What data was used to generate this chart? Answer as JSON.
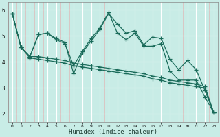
{
  "xlabel": "Humidex (Indice chaleur)",
  "ylabel": "",
  "xlim": [
    -0.5,
    23.5
  ],
  "ylim": [
    1.7,
    6.3
  ],
  "xticks": [
    0,
    1,
    2,
    3,
    4,
    5,
    6,
    7,
    8,
    9,
    10,
    11,
    12,
    13,
    14,
    15,
    16,
    17,
    18,
    19,
    20,
    21,
    22,
    23
  ],
  "yticks": [
    2,
    3,
    4,
    5,
    6
  ],
  "bg_color": "#c8ece6",
  "line_color": "#1a6b5a",
  "grid_major_color": "#ffffff",
  "grid_minor_color": "#e0b8b8",
  "line_width": 0.9,
  "marker": "+",
  "marker_size": 4,
  "marker_lw": 0.9,
  "lines": [
    {
      "x": [
        0,
        1,
        2,
        3,
        4,
        5,
        6,
        7,
        8,
        9,
        10,
        11,
        12,
        13,
        14,
        15,
        16,
        17,
        18,
        19,
        20,
        21,
        22,
        23
      ],
      "y": [
        5.85,
        4.55,
        4.2,
        5.05,
        5.1,
        4.9,
        4.75,
        3.55,
        4.35,
        4.8,
        5.25,
        5.85,
        5.45,
        5.1,
        5.2,
        4.65,
        4.95,
        4.9,
        4.1,
        3.7,
        4.05,
        3.7,
        2.9,
        2.05
      ]
    },
    {
      "x": [
        0,
        1,
        2,
        3,
        4,
        5,
        6,
        7,
        8,
        9,
        10,
        11,
        12,
        13,
        14,
        15,
        16,
        17,
        18,
        19,
        20,
        21,
        22,
        23
      ],
      "y": [
        5.85,
        4.55,
        4.2,
        5.05,
        5.1,
        4.85,
        4.7,
        3.85,
        4.4,
        4.9,
        5.3,
        5.9,
        5.1,
        4.85,
        5.1,
        4.6,
        4.6,
        4.7,
        3.65,
        3.3,
        3.3,
        3.3,
        2.65,
        2.05
      ]
    },
    {
      "x": [
        0,
        1,
        2,
        3,
        4,
        5,
        6,
        7,
        8,
        9,
        10,
        11,
        12,
        13,
        14,
        15,
        16,
        17,
        18,
        19,
        20,
        21,
        22,
        23
      ],
      "y": [
        5.85,
        4.55,
        4.15,
        4.1,
        4.05,
        4.0,
        3.95,
        3.85,
        3.8,
        3.75,
        3.7,
        3.65,
        3.6,
        3.55,
        3.5,
        3.45,
        3.35,
        3.3,
        3.2,
        3.15,
        3.1,
        3.05,
        3.0,
        2.05
      ]
    },
    {
      "x": [
        0,
        1,
        2,
        3,
        4,
        5,
        6,
        7,
        8,
        9,
        10,
        11,
        12,
        13,
        14,
        15,
        16,
        17,
        18,
        19,
        20,
        21,
        22,
        23
      ],
      "y": [
        5.85,
        4.55,
        4.2,
        4.2,
        4.15,
        4.1,
        4.05,
        3.95,
        3.9,
        3.85,
        3.8,
        3.75,
        3.7,
        3.65,
        3.6,
        3.55,
        3.45,
        3.4,
        3.3,
        3.25,
        3.2,
        3.15,
        3.05,
        2.05
      ]
    }
  ]
}
